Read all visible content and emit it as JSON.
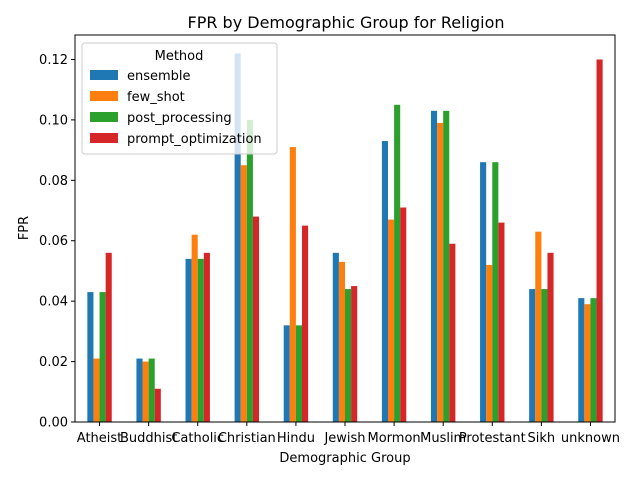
{
  "chart_data": {
    "type": "bar",
    "title": "FPR by Demographic Group for Religion",
    "xlabel": "Demographic Group",
    "ylabel": "FPR",
    "ylim": [
      0,
      0.1281
    ],
    "yticks": [
      "0.00",
      "0.02",
      "0.04",
      "0.06",
      "0.08",
      "0.10",
      "0.12"
    ],
    "categories": [
      "Atheist",
      "Buddhist",
      "Catholic",
      "Christian",
      "Hindu",
      "Jewish",
      "Mormon",
      "Muslim",
      "Protestant",
      "Sikh",
      "unknown"
    ],
    "legend": {
      "title": "Method",
      "position": "top-left"
    },
    "grid": false,
    "series": [
      {
        "name": "ensemble",
        "color": "#1f77b4",
        "values": [
          0.043,
          0.021,
          0.054,
          0.122,
          0.032,
          0.056,
          0.093,
          0.103,
          0.086,
          0.044,
          0.041
        ]
      },
      {
        "name": "few_shot",
        "color": "#ff7f0e",
        "values": [
          0.021,
          0.02,
          0.062,
          0.085,
          0.091,
          0.053,
          0.067,
          0.099,
          0.052,
          0.063,
          0.039
        ]
      },
      {
        "name": "post_processing",
        "color": "#2ca02c",
        "values": [
          0.043,
          0.021,
          0.054,
          0.1,
          0.032,
          0.044,
          0.105,
          0.103,
          0.086,
          0.044,
          0.041
        ]
      },
      {
        "name": "prompt_optimization",
        "color": "#d62728",
        "values": [
          0.056,
          0.011,
          0.056,
          0.068,
          0.065,
          0.045,
          0.071,
          0.059,
          0.066,
          0.056,
          0.12
        ]
      }
    ]
  }
}
